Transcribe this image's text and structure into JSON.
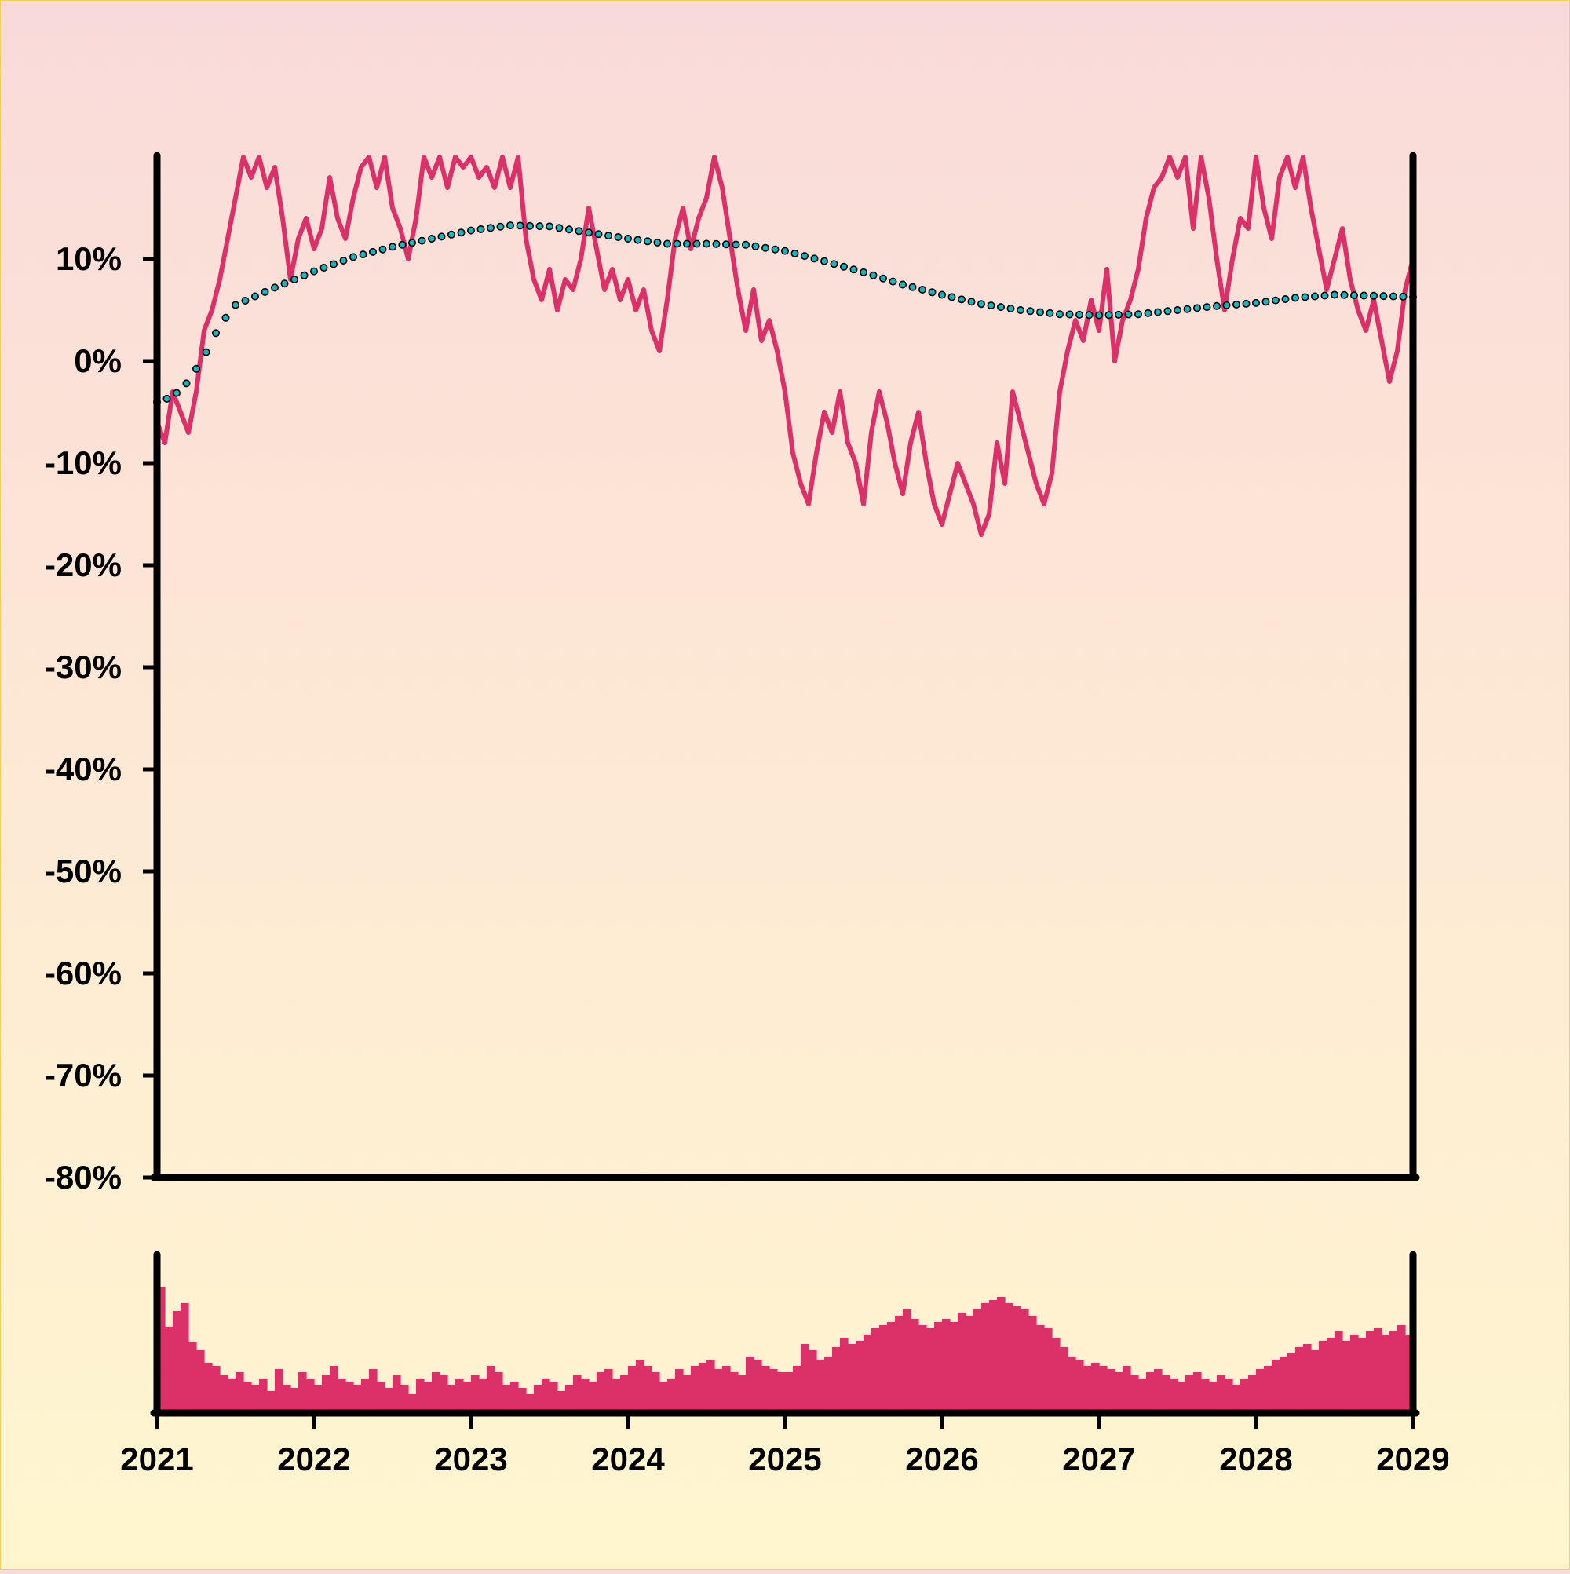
{
  "chart_data": {
    "type": "line",
    "title": "",
    "xlabel": "",
    "ylabel": "",
    "x_ticks": [
      "2021",
      "2022",
      "2023",
      "2024",
      "2025",
      "2026",
      "2027",
      "2028",
      "2029"
    ],
    "y_ticks": [
      "10%",
      "0%",
      "-10%",
      "-20%",
      "-30%",
      "-40%",
      "-50%",
      "-60%",
      "-70%",
      "-80%"
    ],
    "xlim": [
      2021.0,
      2029.0
    ],
    "ylim": [
      -80,
      20
    ],
    "grid": false,
    "legend": "none",
    "colors": {
      "price": "#dc3068",
      "trend": "#1bb4be",
      "volume": "#dc3068",
      "axis": "#000000"
    },
    "series": [
      {
        "style": "solid-line",
        "points": [
          [
            2021.0,
            -6
          ],
          [
            2021.05,
            -8
          ],
          [
            2021.1,
            -3
          ],
          [
            2021.15,
            -5
          ],
          [
            2021.2,
            -7
          ],
          [
            2021.25,
            -3
          ],
          [
            2021.3,
            3
          ],
          [
            2021.35,
            5
          ],
          [
            2021.4,
            8
          ],
          [
            2021.45,
            12
          ],
          [
            2021.5,
            16
          ],
          [
            2021.55,
            20
          ],
          [
            2021.6,
            18
          ],
          [
            2021.65,
            20
          ],
          [
            2021.7,
            17
          ],
          [
            2021.75,
            19
          ],
          [
            2021.8,
            14
          ],
          [
            2021.85,
            8
          ],
          [
            2021.9,
            12
          ],
          [
            2021.95,
            14
          ],
          [
            2022.0,
            11
          ],
          [
            2022.05,
            13
          ],
          [
            2022.1,
            18
          ],
          [
            2022.15,
            14
          ],
          [
            2022.2,
            12
          ],
          [
            2022.25,
            16
          ],
          [
            2022.3,
            19
          ],
          [
            2022.35,
            20
          ],
          [
            2022.4,
            17
          ],
          [
            2022.45,
            20
          ],
          [
            2022.5,
            15
          ],
          [
            2022.55,
            13
          ],
          [
            2022.6,
            10
          ],
          [
            2022.65,
            14
          ],
          [
            2022.7,
            20
          ],
          [
            2022.75,
            18
          ],
          [
            2022.8,
            20
          ],
          [
            2022.85,
            17
          ],
          [
            2022.9,
            20
          ],
          [
            2022.95,
            19
          ],
          [
            2023.0,
            20
          ],
          [
            2023.05,
            18
          ],
          [
            2023.1,
            19
          ],
          [
            2023.15,
            17
          ],
          [
            2023.2,
            20
          ],
          [
            2023.25,
            17
          ],
          [
            2023.3,
            20
          ],
          [
            2023.35,
            12
          ],
          [
            2023.4,
            8
          ],
          [
            2023.45,
            6
          ],
          [
            2023.5,
            9
          ],
          [
            2023.55,
            5
          ],
          [
            2023.6,
            8
          ],
          [
            2023.65,
            7
          ],
          [
            2023.7,
            10
          ],
          [
            2023.75,
            15
          ],
          [
            2023.8,
            11
          ],
          [
            2023.85,
            7
          ],
          [
            2023.9,
            9
          ],
          [
            2023.95,
            6
          ],
          [
            2024.0,
            8
          ],
          [
            2024.05,
            5
          ],
          [
            2024.1,
            7
          ],
          [
            2024.15,
            3
          ],
          [
            2024.2,
            1
          ],
          [
            2024.25,
            6
          ],
          [
            2024.3,
            12
          ],
          [
            2024.35,
            15
          ],
          [
            2024.4,
            11
          ],
          [
            2024.45,
            14
          ],
          [
            2024.5,
            16
          ],
          [
            2024.55,
            20
          ],
          [
            2024.6,
            17
          ],
          [
            2024.65,
            12
          ],
          [
            2024.7,
            7
          ],
          [
            2024.75,
            3
          ],
          [
            2024.8,
            7
          ],
          [
            2024.85,
            2
          ],
          [
            2024.9,
            4
          ],
          [
            2024.95,
            1
          ],
          [
            2025.0,
            -3
          ],
          [
            2025.05,
            -9
          ],
          [
            2025.1,
            -12
          ],
          [
            2025.15,
            -14
          ],
          [
            2025.2,
            -9
          ],
          [
            2025.25,
            -5
          ],
          [
            2025.3,
            -7
          ],
          [
            2025.35,
            -3
          ],
          [
            2025.4,
            -8
          ],
          [
            2025.45,
            -10
          ],
          [
            2025.5,
            -14
          ],
          [
            2025.55,
            -7
          ],
          [
            2025.6,
            -3
          ],
          [
            2025.65,
            -6
          ],
          [
            2025.7,
            -10
          ],
          [
            2025.75,
            -13
          ],
          [
            2025.8,
            -8
          ],
          [
            2025.85,
            -5
          ],
          [
            2025.9,
            -10
          ],
          [
            2025.95,
            -14
          ],
          [
            2026.0,
            -16
          ],
          [
            2026.05,
            -13
          ],
          [
            2026.1,
            -10
          ],
          [
            2026.15,
            -12
          ],
          [
            2026.2,
            -14
          ],
          [
            2026.25,
            -17
          ],
          [
            2026.3,
            -15
          ],
          [
            2026.35,
            -8
          ],
          [
            2026.4,
            -12
          ],
          [
            2026.45,
            -3
          ],
          [
            2026.5,
            -6
          ],
          [
            2026.55,
            -9
          ],
          [
            2026.6,
            -12
          ],
          [
            2026.65,
            -14
          ],
          [
            2026.7,
            -11
          ],
          [
            2026.75,
            -3
          ],
          [
            2026.8,
            1
          ],
          [
            2026.85,
            4
          ],
          [
            2026.9,
            2
          ],
          [
            2026.95,
            6
          ],
          [
            2027.0,
            3
          ],
          [
            2027.05,
            9
          ],
          [
            2027.1,
            0
          ],
          [
            2027.15,
            4
          ],
          [
            2027.2,
            6
          ],
          [
            2027.25,
            9
          ],
          [
            2027.3,
            14
          ],
          [
            2027.35,
            17
          ],
          [
            2027.4,
            18
          ],
          [
            2027.45,
            20
          ],
          [
            2027.5,
            18
          ],
          [
            2027.55,
            20
          ],
          [
            2027.6,
            13
          ],
          [
            2027.65,
            20
          ],
          [
            2027.7,
            16
          ],
          [
            2027.75,
            10
          ],
          [
            2027.8,
            5
          ],
          [
            2027.85,
            10
          ],
          [
            2027.9,
            14
          ],
          [
            2027.95,
            13
          ],
          [
            2028.0,
            20
          ],
          [
            2028.05,
            15
          ],
          [
            2028.1,
            12
          ],
          [
            2028.15,
            18
          ],
          [
            2028.2,
            20
          ],
          [
            2028.25,
            17
          ],
          [
            2028.3,
            20
          ],
          [
            2028.35,
            15
          ],
          [
            2028.4,
            11
          ],
          [
            2028.45,
            7
          ],
          [
            2028.5,
            10
          ],
          [
            2028.55,
            13
          ],
          [
            2028.6,
            8
          ],
          [
            2028.65,
            5
          ],
          [
            2028.7,
            3
          ],
          [
            2028.75,
            6
          ],
          [
            2028.8,
            2
          ],
          [
            2028.85,
            -2
          ],
          [
            2028.9,
            1
          ],
          [
            2028.95,
            7
          ],
          [
            2029.0,
            10
          ]
        ]
      },
      {
        "style": "dotted-line",
        "points": [
          [
            2021.0,
            -4
          ],
          [
            2021.1,
            -3.5
          ],
          [
            2021.2,
            -2
          ],
          [
            2021.3,
            0.5
          ],
          [
            2021.4,
            3.5
          ],
          [
            2021.5,
            5.5
          ],
          [
            2021.75,
            7.2
          ],
          [
            2022.0,
            8.8
          ],
          [
            2022.25,
            10.2
          ],
          [
            2022.5,
            11.2
          ],
          [
            2022.75,
            12.0
          ],
          [
            2023.0,
            12.8
          ],
          [
            2023.25,
            13.3
          ],
          [
            2023.5,
            13.2
          ],
          [
            2023.75,
            12.6
          ],
          [
            2024.0,
            12.0
          ],
          [
            2024.25,
            11.5
          ],
          [
            2024.5,
            11.5
          ],
          [
            2024.75,
            11.4
          ],
          [
            2025.0,
            10.8
          ],
          [
            2025.25,
            9.8
          ],
          [
            2025.5,
            8.7
          ],
          [
            2025.75,
            7.5
          ],
          [
            2026.0,
            6.5
          ],
          [
            2026.25,
            5.6
          ],
          [
            2026.5,
            5.0
          ],
          [
            2026.75,
            4.6
          ],
          [
            2027.0,
            4.5
          ],
          [
            2027.25,
            4.6
          ],
          [
            2027.5,
            5.0
          ],
          [
            2027.75,
            5.4
          ],
          [
            2028.0,
            5.7
          ],
          [
            2028.25,
            6.2
          ],
          [
            2028.5,
            6.5
          ],
          [
            2028.75,
            6.4
          ],
          [
            2029.0,
            6.3
          ]
        ]
      }
    ],
    "volume": {
      "type": "bar",
      "x_start": 2021.0,
      "x_end": 2029.0,
      "ymax": 100,
      "values": [
        80,
        55,
        65,
        70,
        45,
        40,
        32,
        30,
        24,
        22,
        26,
        20,
        18,
        22,
        14,
        28,
        18,
        16,
        26,
        22,
        18,
        24,
        30,
        22,
        20,
        18,
        22,
        28,
        20,
        16,
        24,
        18,
        12,
        22,
        20,
        26,
        24,
        18,
        22,
        20,
        24,
        22,
        30,
        26,
        18,
        20,
        16,
        12,
        18,
        22,
        20,
        14,
        18,
        24,
        22,
        20,
        26,
        28,
        22,
        24,
        30,
        34,
        30,
        26,
        20,
        22,
        28,
        24,
        30,
        32,
        34,
        28,
        30,
        26,
        24,
        36,
        34,
        30,
        28,
        26,
        26,
        30,
        44,
        40,
        34,
        36,
        42,
        48,
        44,
        46,
        50,
        54,
        56,
        58,
        62,
        66,
        60,
        56,
        54,
        58,
        60,
        58,
        64,
        62,
        66,
        70,
        72,
        74,
        70,
        68,
        66,
        62,
        56,
        54,
        48,
        42,
        36,
        34,
        30,
        32,
        30,
        28,
        26,
        30,
        24,
        22,
        26,
        28,
        24,
        22,
        20,
        24,
        26,
        22,
        20,
        24,
        22,
        18,
        22,
        24,
        28,
        30,
        34,
        36,
        38,
        42,
        44,
        40,
        46,
        48,
        52,
        46,
        50,
        48,
        52,
        54,
        50,
        52,
        56,
        50
      ]
    }
  }
}
